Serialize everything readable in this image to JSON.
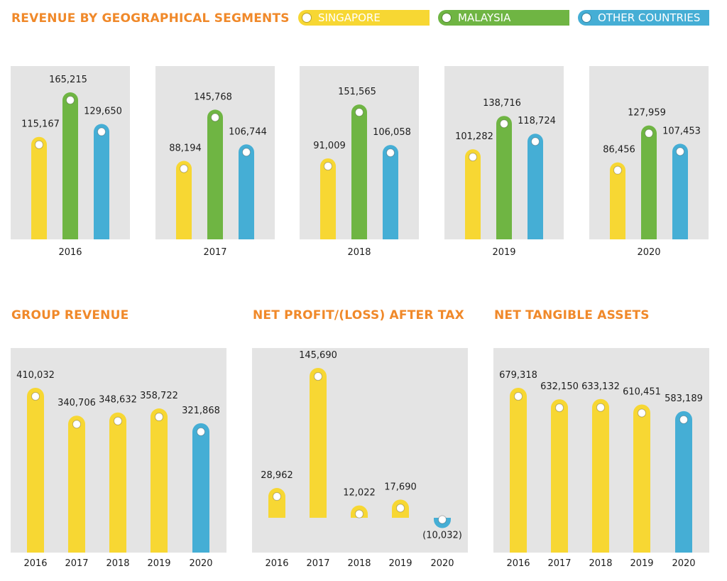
{
  "titles": {
    "geo": "REVENUE BY GEOGRAPHICAL SEGMENTS",
    "group": "GROUP REVENUE",
    "profit": "NET PROFIT/(LOSS) AFTER TAX",
    "nta": "NET TANGIBLE ASSETS"
  },
  "legend": [
    {
      "label": "SINGAPORE",
      "color": "#f7d733"
    },
    {
      "label": "MALAYSIA",
      "color": "#6fb543"
    },
    {
      "label": "OTHER COUNTRIES",
      "color": "#45aed5"
    }
  ],
  "colors": {
    "singapore": "#f7d733",
    "malaysia": "#6fb543",
    "other": "#45aed5",
    "panel": "#e4e4e4",
    "title": "#f0892a"
  },
  "chart_data": [
    {
      "type": "bar",
      "title": "REVENUE BY GEOGRAPHICAL SEGMENTS",
      "categories": [
        "2016",
        "2017",
        "2018",
        "2019",
        "2020"
      ],
      "series": [
        {
          "name": "SINGAPORE",
          "values": [
            115167,
            88194,
            91009,
            101282,
            86456
          ],
          "labels": [
            "115,167",
            "88,194",
            "91,009",
            "101,282",
            "86,456"
          ]
        },
        {
          "name": "MALAYSIA",
          "values": [
            165215,
            145768,
            151565,
            138716,
            127959
          ],
          "labels": [
            "165,215",
            "145,768",
            "151,565",
            "138,716",
            "127,959"
          ]
        },
        {
          "name": "OTHER COUNTRIES",
          "values": [
            129650,
            106744,
            106058,
            118724,
            107453
          ],
          "labels": [
            "129,650",
            "106,744",
            "106,058",
            "118,724",
            "107,453"
          ]
        }
      ]
    },
    {
      "type": "bar",
      "title": "GROUP REVENUE",
      "categories": [
        "2016",
        "2017",
        "2018",
        "2019",
        "2020"
      ],
      "values": [
        410032,
        340706,
        348632,
        358722,
        321868
      ],
      "labels": [
        "410,032",
        "340,706",
        "348,632",
        "358,722",
        "321,868"
      ]
    },
    {
      "type": "bar",
      "title": "NET PROFIT/(LOSS) AFTER TAX",
      "categories": [
        "2016",
        "2017",
        "2018",
        "2019",
        "2020"
      ],
      "values": [
        28962,
        145690,
        12022,
        17690,
        -10032
      ],
      "labels": [
        "28,962",
        "145,690",
        "12,022",
        "17,690",
        "(10,032)"
      ]
    },
    {
      "type": "bar",
      "title": "NET TANGIBLE ASSETS",
      "categories": [
        "2016",
        "2017",
        "2018",
        "2019",
        "2020"
      ],
      "values": [
        679318,
        632150,
        633132,
        610451,
        583189
      ],
      "labels": [
        "679,318",
        "632,150",
        "633,132",
        "610,451",
        "583,189"
      ]
    }
  ]
}
